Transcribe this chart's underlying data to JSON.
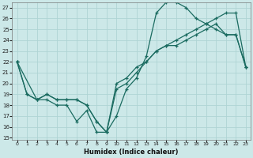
{
  "xlabel": "Humidex (Indice chaleur)",
  "background_color": "#cce8e8",
  "grid_color": "#afd4d4",
  "line_color": "#1a6b60",
  "xlim": [
    -0.5,
    23.5
  ],
  "ylim": [
    14.8,
    27.5
  ],
  "yticks": [
    15,
    16,
    17,
    18,
    19,
    20,
    21,
    22,
    23,
    24,
    25,
    26,
    27
  ],
  "xticks": [
    0,
    1,
    2,
    3,
    4,
    5,
    6,
    7,
    8,
    9,
    10,
    11,
    12,
    13,
    14,
    15,
    16,
    17,
    18,
    19,
    20,
    21,
    22,
    23
  ],
  "line1_x": [
    0,
    1,
    2,
    3,
    4,
    5,
    6,
    7,
    8,
    9,
    10,
    11,
    12,
    13,
    14,
    15,
    16,
    17,
    18,
    19,
    20,
    21,
    22,
    23
  ],
  "line1_y": [
    22.0,
    19.0,
    18.5,
    18.5,
    18.0,
    18.0,
    16.5,
    17.5,
    15.5,
    15.5,
    17.0,
    19.5,
    20.5,
    22.5,
    26.5,
    27.5,
    27.5,
    27.0,
    26.0,
    25.5,
    25.0,
    24.5,
    24.5,
    21.5
  ],
  "line2_x": [
    0,
    1,
    2,
    3,
    4,
    5,
    6,
    7,
    8,
    9,
    10,
    11,
    12,
    13,
    14,
    15,
    16,
    17,
    18,
    19,
    20,
    21,
    22,
    23
  ],
  "line2_y": [
    22.0,
    19.0,
    18.5,
    19.0,
    18.5,
    18.5,
    18.5,
    18.0,
    16.5,
    15.5,
    20.0,
    20.5,
    21.5,
    22.0,
    23.0,
    23.5,
    23.5,
    24.0,
    24.5,
    25.0,
    25.5,
    24.5,
    24.5,
    21.5
  ],
  "line3_x": [
    0,
    2,
    3,
    4,
    5,
    6,
    7,
    8,
    9,
    10,
    11,
    12,
    13,
    14,
    15,
    16,
    17,
    18,
    19,
    20,
    21,
    22,
    23
  ],
  "line3_y": [
    22.0,
    18.5,
    19.0,
    18.5,
    18.5,
    18.5,
    18.0,
    16.5,
    15.5,
    19.5,
    20.0,
    21.0,
    22.0,
    23.0,
    23.5,
    24.0,
    24.5,
    25.0,
    25.5,
    26.0,
    26.5,
    26.5,
    21.5
  ]
}
